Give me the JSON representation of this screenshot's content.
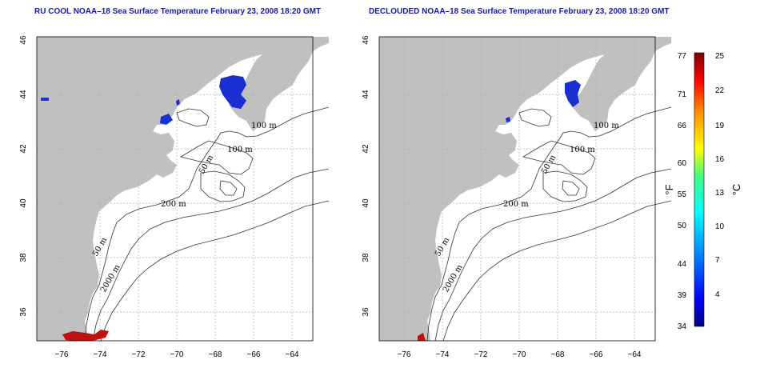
{
  "panels": [
    {
      "id": "left",
      "title": "RU COOL NOAA–18 Sea Surface Temperature February 23, 2008 18:20 GMT",
      "contour_labels": [
        "100 m",
        "100 m",
        "50 m",
        "200 m",
        "50 m",
        "2000 m"
      ]
    },
    {
      "id": "right",
      "title": "DECLOUDED NOAA–18 Sea Surface Temperature February 23, 2008 18:20 GMT",
      "contour_labels": [
        "100 m",
        "100 m",
        "50 m",
        "200 m",
        "50 m",
        "2000 m"
      ]
    }
  ],
  "axes": {
    "lon_ticks": [
      "−76",
      "−74",
      "−72",
      "−70",
      "−68",
      "−66",
      "−64"
    ],
    "lat_ticks": [
      "36",
      "38",
      "40",
      "42",
      "44",
      "46"
    ]
  },
  "colorbar": {
    "fahrenheit_unit": "°F",
    "celsius_unit": "°C",
    "fahrenheit_ticks": [
      "77",
      "71",
      "66",
      "60",
      "55",
      "50",
      "44",
      "39",
      "34"
    ],
    "celsius_ticks": [
      "25",
      "22",
      "19",
      "16",
      "13",
      "10",
      "7",
      "4"
    ]
  },
  "colors": {
    "land": "#c0c0c0",
    "ocean": "#ffffff",
    "cold": "#1a2fd0",
    "warm": "#c01010",
    "grid": "#b0b0b0"
  }
}
